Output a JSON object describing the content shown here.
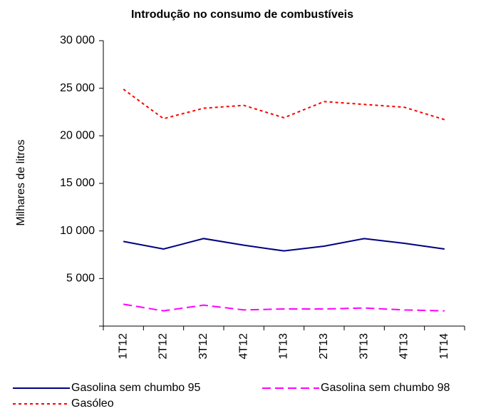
{
  "chart_data": {
    "type": "line",
    "title": "Introdução no consumo de combustíveis",
    "y_label": "Milhares de litros",
    "categories": [
      "1T12",
      "2T12",
      "3T12",
      "4T12",
      "1T13",
      "2T13",
      "3T13",
      "4T13",
      "1T14"
    ],
    "series": [
      {
        "name": "Gasolina sem chumbo 95",
        "color": "#000080",
        "dash": "solid",
        "values": [
          8900,
          8100,
          9200,
          8500,
          7900,
          8400,
          9200,
          8700,
          8100
        ]
      },
      {
        "name": "Gasolina sem chumbo 98",
        "color": "#ff00ff",
        "dash": "dashed",
        "values": [
          2300,
          1600,
          2200,
          1700,
          1800,
          1800,
          1900,
          1700,
          1600
        ]
      },
      {
        "name": "Gasóleo",
        "color": "#ff0000",
        "dash": "dotted",
        "values": [
          24900,
          21800,
          22900,
          23200,
          21900,
          23600,
          23300,
          23000,
          21700
        ]
      }
    ],
    "ylim": [
      0,
      30000
    ],
    "yticks": [
      {
        "value": 5000,
        "label": "5 000"
      },
      {
        "value": 10000,
        "label": "10 000"
      },
      {
        "value": 15000,
        "label": "15 000"
      },
      {
        "value": 20000,
        "label": "20 000"
      },
      {
        "value": 25000,
        "label": "25 000"
      },
      {
        "value": 30000,
        "label": "30 000"
      }
    ],
    "grid": false
  }
}
